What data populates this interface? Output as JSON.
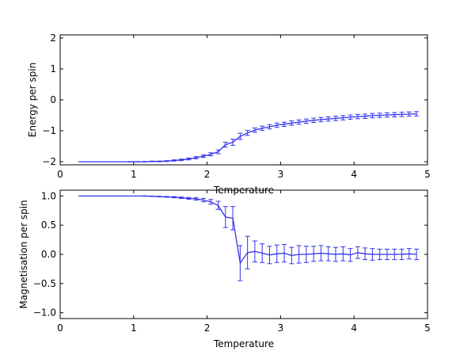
{
  "chart_data": [
    {
      "type": "line",
      "xlabel": "Temperature",
      "ylabel": "Energy per spin",
      "xlim": [
        0,
        5
      ],
      "ylim": [
        -2.1,
        2.1
      ],
      "xticks": [
        0,
        1,
        2,
        3,
        4,
        5
      ],
      "yticks": [
        -2,
        -1,
        0,
        1,
        2
      ],
      "xtick_labels": [
        "0",
        "1",
        "2",
        "3",
        "4",
        "5"
      ],
      "ytick_labels": [
        "−2",
        "−1",
        "0",
        "1",
        "2"
      ],
      "grid": false,
      "color": "#3333ee",
      "x": [
        0.25,
        0.35,
        0.45,
        0.55,
        0.65,
        0.75,
        0.85,
        0.95,
        1.05,
        1.15,
        1.25,
        1.35,
        1.45,
        1.55,
        1.65,
        1.75,
        1.85,
        1.95,
        2.05,
        2.15,
        2.25,
        2.35,
        2.45,
        2.55,
        2.65,
        2.75,
        2.85,
        2.95,
        3.05,
        3.15,
        3.25,
        3.35,
        3.45,
        3.55,
        3.65,
        3.75,
        3.85,
        3.95,
        4.05,
        4.15,
        4.25,
        4.35,
        4.45,
        4.55,
        4.65,
        4.75,
        4.85
      ],
      "y": [
        -2.0,
        -2.0,
        -2.0,
        -2.0,
        -2.0,
        -2.0,
        -2.0,
        -2.0,
        -2.0,
        -2.0,
        -1.99,
        -1.99,
        -1.98,
        -1.96,
        -1.94,
        -1.91,
        -1.87,
        -1.82,
        -1.76,
        -1.68,
        -1.45,
        -1.37,
        -1.18,
        -1.07,
        -0.98,
        -0.92,
        -0.87,
        -0.82,
        -0.79,
        -0.75,
        -0.72,
        -0.69,
        -0.66,
        -0.64,
        -0.62,
        -0.6,
        -0.58,
        -0.56,
        -0.54,
        -0.53,
        -0.51,
        -0.5,
        -0.49,
        -0.48,
        -0.47,
        -0.46,
        -0.45
      ],
      "yerr": [
        0.0,
        0.0,
        0.0,
        0.0,
        0.0,
        0.0,
        0.0,
        0.005,
        0.005,
        0.008,
        0.01,
        0.012,
        0.015,
        0.02,
        0.025,
        0.03,
        0.035,
        0.04,
        0.05,
        0.06,
        0.08,
        0.1,
        0.1,
        0.08,
        0.07,
        0.07,
        0.07,
        0.07,
        0.07,
        0.07,
        0.07,
        0.07,
        0.07,
        0.07,
        0.07,
        0.07,
        0.07,
        0.07,
        0.07,
        0.07,
        0.07,
        0.07,
        0.07,
        0.07,
        0.07,
        0.07,
        0.07
      ]
    },
    {
      "type": "line",
      "xlabel": "Temperature",
      "ylabel": "Magnetisation per spin",
      "xlim": [
        0,
        5
      ],
      "ylim": [
        -1.1,
        1.1
      ],
      "xticks": [
        0,
        1,
        2,
        3,
        4,
        5
      ],
      "yticks": [
        -1.0,
        -0.5,
        0.0,
        0.5,
        1.0
      ],
      "xtick_labels": [
        "0",
        "1",
        "2",
        "3",
        "4",
        "5"
      ],
      "ytick_labels": [
        "−1.0",
        "−0.5",
        "0.0",
        "0.5",
        "1.0"
      ],
      "grid": false,
      "color": "#3333ee",
      "x": [
        0.25,
        0.35,
        0.45,
        0.55,
        0.65,
        0.75,
        0.85,
        0.95,
        1.05,
        1.15,
        1.25,
        1.35,
        1.45,
        1.55,
        1.65,
        1.75,
        1.85,
        1.95,
        2.05,
        2.15,
        2.25,
        2.35,
        2.45,
        2.55,
        2.65,
        2.75,
        2.85,
        2.95,
        3.05,
        3.15,
        3.25,
        3.35,
        3.45,
        3.55,
        3.65,
        3.75,
        3.85,
        3.95,
        4.05,
        4.15,
        4.25,
        4.35,
        4.45,
        4.55,
        4.65,
        4.75,
        4.85
      ],
      "y": [
        1.0,
        1.0,
        1.0,
        1.0,
        1.0,
        1.0,
        1.0,
        1.0,
        1.0,
        1.0,
        0.995,
        0.99,
        0.985,
        0.98,
        0.97,
        0.96,
        0.95,
        0.93,
        0.9,
        0.84,
        0.64,
        0.62,
        -0.15,
        0.03,
        0.05,
        0.02,
        -0.01,
        0.01,
        0.02,
        -0.02,
        0.0,
        0.0,
        0.01,
        0.02,
        0.01,
        0.0,
        0.01,
        -0.01,
        0.03,
        0.01,
        0.0,
        0.0,
        0.0,
        0.0,
        0.0,
        0.01,
        0.0
      ],
      "yerr": [
        0.0,
        0.0,
        0.0,
        0.0,
        0.0,
        0.0,
        0.0,
        0.0,
        0.0,
        0.003,
        0.004,
        0.005,
        0.007,
        0.01,
        0.012,
        0.015,
        0.02,
        0.03,
        0.04,
        0.07,
        0.18,
        0.2,
        0.3,
        0.28,
        0.18,
        0.16,
        0.15,
        0.15,
        0.15,
        0.14,
        0.15,
        0.14,
        0.13,
        0.13,
        0.12,
        0.12,
        0.12,
        0.11,
        0.1,
        0.1,
        0.1,
        0.09,
        0.09,
        0.09,
        0.09,
        0.09,
        0.09
      ]
    }
  ]
}
